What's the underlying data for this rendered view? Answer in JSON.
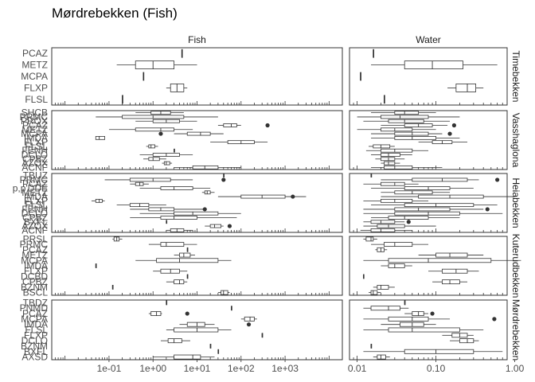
{
  "chart_data": {
    "type": "boxplot",
    "title": "Mørdrebekken (Fish)",
    "x_scale": "log10",
    "facet_columns": [
      {
        "name": "Fish",
        "xlim": [
          0.005,
          20000
        ],
        "tick_values": [
          0.1,
          1,
          10,
          100,
          1000
        ],
        "tick_labels": [
          "1e-01",
          "1e+00",
          "1e+01",
          "1e+02",
          "1e+03"
        ]
      },
      {
        "name": "Water",
        "xlim": [
          0.008,
          0.8
        ],
        "tick_values": [
          0.01,
          0.1,
          1
        ],
        "tick_labels": [
          "0.01",
          "0.10",
          "1.00"
        ]
      }
    ],
    "facet_rows": [
      {
        "name": "Timebekken",
        "categories": [
          "PCAZ",
          "METZ",
          "MCPA",
          "FLXP",
          "FLSL"
        ],
        "fish": [
          {
            "med": 4.5,
            "q1": 4.5,
            "q3": 4.5,
            "lo": 4.5,
            "hi": 4.5
          },
          {
            "med": 1.0,
            "q1": 0.4,
            "q3": 3.0,
            "lo": 0.15,
            "hi": 10
          },
          {
            "med": 0.6,
            "q1": 0.6,
            "q3": 0.6,
            "lo": 0.6,
            "hi": 0.6
          },
          {
            "med": 3.5,
            "q1": 2.5,
            "q3": 5.0,
            "lo": 2.0,
            "hi": 6.0
          },
          {
            "med": 0.2,
            "q1": 0.2,
            "q3": 0.2,
            "lo": 0.2,
            "hi": 0.2
          }
        ],
        "water": [
          {
            "med": 0.016,
            "q1": 0.016,
            "q3": 0.016,
            "lo": 0.016,
            "hi": 0.016
          },
          {
            "med": 0.09,
            "q1": 0.04,
            "q3": 0.22,
            "lo": 0.015,
            "hi": 0.6
          },
          {
            "med": 0.011,
            "q1": 0.011,
            "q3": 0.011,
            "lo": 0.011,
            "hi": 0.011
          },
          {
            "med": 0.25,
            "q1": 0.18,
            "q3": 0.32,
            "lo": 0.14,
            "hi": 0.4
          },
          {
            "med": 0.022,
            "q1": 0.022,
            "q3": 0.022,
            "lo": 0.022,
            "hi": 0.022
          }
        ]
      },
      {
        "name": "Vasshaglona",
        "categories": [
          "SHCB",
          "PRMC",
          "PROX",
          "PCAZ",
          "METZ",
          "MCPA",
          "IMDA",
          "FLXP",
          "FLSL",
          "FENH",
          "DCLO",
          "CPBZ",
          "AZOX",
          "ACNF"
        ],
        "fish": [
          {
            "med": 1.5,
            "q1": 0.9,
            "q3": 2.5,
            "lo": 0.4,
            "hi": 5
          },
          {
            "med": 1.0,
            "q1": 0.2,
            "q3": 5,
            "lo": 0.05,
            "hi": 30
          },
          {
            "med": 2.0,
            "q1": 1.0,
            "q3": 4,
            "lo": 0.4,
            "hi": 10
          },
          {
            "med": 60,
            "q1": 40,
            "q3": 80,
            "lo": 30,
            "hi": 100,
            "outliers": [
              400
            ]
          },
          {
            "med": 1.5,
            "q1": 0.4,
            "q3": 3,
            "lo": 0.1,
            "hi": 8
          },
          {
            "med": 12,
            "q1": 6,
            "q3": 20,
            "lo": 3,
            "hi": 40,
            "outliers": [
              1.5
            ]
          },
          {
            "med": 0.06,
            "q1": 0.05,
            "q3": 0.08,
            "lo": 0.05,
            "hi": 0.08
          },
          {
            "med": 100,
            "q1": 50,
            "q3": 200,
            "lo": 20,
            "hi": 400
          },
          {
            "med": 0.9,
            "q1": 0.8,
            "q3": 1.1,
            "lo": 0.7,
            "hi": 1.3
          },
          {
            "med": 3.0,
            "q1": 3.0,
            "q3": 3.0,
            "lo": 3.0,
            "hi": 3.0
          },
          {
            "med": 2.0,
            "q1": 1.0,
            "q3": 4,
            "lo": 0.5,
            "hi": 8
          },
          {
            "med": 1.0,
            "q1": 0.8,
            "q3": 1.4,
            "lo": 0.6,
            "hi": 2
          },
          {
            "med": 2.0,
            "q1": 1.8,
            "q3": 2.4,
            "lo": 1.6,
            "hi": 2.7
          },
          {
            "med": 15,
            "q1": 8,
            "q3": 30,
            "lo": 3,
            "hi": 100
          }
        ],
        "water": [
          {
            "med": 0.04,
            "q1": 0.03,
            "q3": 0.06,
            "lo": 0.015,
            "hi": 0.1
          },
          {
            "med": 0.035,
            "q1": 0.02,
            "q3": 0.08,
            "lo": 0.01,
            "hi": 0.2
          },
          {
            "med": 0.04,
            "q1": 0.025,
            "q3": 0.07,
            "lo": 0.012,
            "hi": 0.15
          },
          {
            "med": 0.06,
            "q1": 0.04,
            "q3": 0.09,
            "lo": 0.02,
            "hi": 0.14,
            "outliers": [
              0.17
            ]
          },
          {
            "med": 0.03,
            "q1": 0.02,
            "q3": 0.05,
            "lo": 0.01,
            "hi": 0.1
          },
          {
            "med": 0.05,
            "q1": 0.03,
            "q3": 0.08,
            "lo": 0.015,
            "hi": 0.12,
            "outliers": [
              0.15
            ]
          },
          {
            "med": 0.05,
            "q1": 0.03,
            "q3": 0.1,
            "lo": 0.015,
            "hi": 0.2
          },
          {
            "med": 0.12,
            "q1": 0.09,
            "q3": 0.16,
            "lo": 0.06,
            "hi": 0.25
          },
          {
            "med": 0.02,
            "q1": 0.016,
            "q3": 0.026,
            "lo": 0.014,
            "hi": 0.03
          },
          {
            "med": 0.03,
            "q1": 0.02,
            "q3": 0.05,
            "lo": 0.013,
            "hi": 0.08
          },
          {
            "med": 0.025,
            "q1": 0.02,
            "q3": 0.035,
            "lo": 0.015,
            "hi": 0.05
          },
          {
            "med": 0.025,
            "q1": 0.02,
            "q3": 0.03,
            "lo": 0.017,
            "hi": 0.04
          },
          {
            "med": 0.025,
            "q1": 0.022,
            "q3": 0.03,
            "lo": 0.02,
            "hi": 0.035
          },
          {
            "med": 0.03,
            "q1": 0.022,
            "q3": 0.05,
            "lo": 0.015,
            "hi": 0.12
          }
        ]
      },
      {
        "name": "Heiabekken",
        "categories": [
          "TBUZ",
          "PRMC",
          "PCAZ",
          "p,p'DDE",
          "METZ",
          "IMDA",
          "FLXP",
          "FLSL",
          "FENH",
          "DCLO",
          "CPBZ",
          "BXFL",
          "AZOX",
          "ACNF"
        ],
        "fish": [
          {
            "med": 40,
            "q1": 40,
            "q3": 40,
            "lo": 40,
            "hi": 40
          },
          {
            "med": 1.0,
            "q1": 0.3,
            "q3": 2.5,
            "lo": 0.08,
            "hi": 8,
            "outliers": [
              40
            ]
          },
          {
            "med": 0.5,
            "q1": 0.4,
            "q3": 0.6,
            "lo": 0.3,
            "hi": 0.8
          },
          {
            "med": 3.0,
            "q1": 1.5,
            "q3": 8,
            "lo": 0.5,
            "hi": 20
          },
          {
            "med": 17,
            "q1": 15,
            "q3": 20,
            "lo": 13,
            "hi": 25
          },
          {
            "med": 300,
            "q1": 100,
            "q3": 1000,
            "lo": 30,
            "hi": 3000,
            "outliers": [
              1500
            ]
          },
          {
            "med": 0.06,
            "q1": 0.05,
            "q3": 0.07,
            "lo": 0.04,
            "hi": 0.08
          },
          {
            "med": 0.5,
            "q1": 0.3,
            "q3": 0.8,
            "lo": 0.15,
            "hi": 2
          },
          {
            "med": 1.5,
            "q1": 0.8,
            "q3": 3,
            "lo": 0.3,
            "hi": 15,
            "outliers": [
              15
            ]
          },
          {
            "med": 8,
            "q1": 3,
            "q3": 30,
            "lo": 0.5,
            "hi": 100
          },
          {
            "med": 3,
            "q1": 1.5,
            "q3": 10,
            "lo": 0.3,
            "hi": 80
          },
          {
            "med": 2,
            "q1": 2,
            "q3": 2,
            "lo": 2,
            "hi": 2
          },
          {
            "med": 25,
            "q1": 20,
            "q3": 35,
            "lo": 15,
            "hi": 40,
            "outliers": [
              55
            ]
          },
          {
            "med": 3.5,
            "q1": 2.5,
            "q3": 5,
            "lo": 2,
            "hi": 8
          }
        ],
        "water": [
          {
            "med": 0.015,
            "q1": 0.015,
            "q3": 0.015,
            "lo": 0.015,
            "hi": 0.015
          },
          {
            "med": 0.12,
            "q1": 0.05,
            "q3": 0.25,
            "lo": 0.02,
            "hi": 0.35,
            "outliers": [
              0.6
            ]
          },
          {
            "med": 0.03,
            "q1": 0.02,
            "q3": 0.04,
            "lo": 0.012,
            "hi": 0.06
          },
          {
            "med": 0.08,
            "q1": 0.04,
            "q3": 0.15,
            "lo": 0.015,
            "hi": 0.3
          },
          {
            "med": 0.05,
            "q1": 0.03,
            "q3": 0.09,
            "lo": 0.02,
            "hi": 0.15
          },
          {
            "med": 0.15,
            "q1": 0.06,
            "q3": 0.4,
            "lo": 0.02,
            "hi": 1.0
          },
          {
            "med": 0.03,
            "q1": 0.02,
            "q3": 0.05,
            "lo": 0.012,
            "hi": 0.08
          },
          {
            "med": 0.1,
            "q1": 0.04,
            "q3": 0.3,
            "lo": 0.015,
            "hi": 0.6
          },
          {
            "med": 0.06,
            "q1": 0.03,
            "q3": 0.15,
            "lo": 0.012,
            "hi": 0.4,
            "outliers": [
              0.45
            ]
          },
          {
            "med": 0.08,
            "q1": 0.03,
            "q3": 0.2,
            "lo": 0.012,
            "hi": 0.7
          },
          {
            "med": 0.04,
            "q1": 0.025,
            "q3": 0.08,
            "lo": 0.015,
            "hi": 0.2
          },
          {
            "med": 0.02,
            "q1": 0.015,
            "q3": 0.03,
            "lo": 0.012,
            "hi": 0.04,
            "outliers": [
              0.045
            ]
          },
          {
            "med": 0.025,
            "q1": 0.018,
            "q3": 0.04,
            "lo": 0.012,
            "hi": 0.1
          },
          {
            "med": 0.02,
            "q1": 0.015,
            "q3": 0.03,
            "lo": 0.011,
            "hi": 0.05
          }
        ]
      },
      {
        "name": "Kuterudbekken",
        "categories": [
          "PRSL",
          "PRMC",
          "PCAZ",
          "METZ",
          "MCPA",
          "IMDA",
          "FLXP",
          "DCBD",
          "CPBZ",
          "BZNM",
          "BSCL"
        ],
        "fish": [
          {
            "med": 0.15,
            "q1": 0.13,
            "q3": 0.17,
            "lo": 0.12,
            "hi": 0.2
          },
          {
            "med": 2.0,
            "q1": 1.5,
            "q3": 5,
            "lo": 0.8,
            "hi": 10
          },
          {
            "med": 6,
            "q1": 6,
            "q3": 6,
            "lo": 6,
            "hi": 6
          },
          {
            "med": 5,
            "q1": 4,
            "q3": 7,
            "lo": 3,
            "hi": 9
          },
          {
            "med": 4,
            "q1": 1.2,
            "q3": 30,
            "lo": 0.4,
            "hi": 60
          },
          {
            "med": 0.05,
            "q1": 0.05,
            "q3": 0.05,
            "lo": 0.05,
            "hi": 0.05
          },
          {
            "med": 2.5,
            "q1": 1.5,
            "q3": 4,
            "lo": 1,
            "hi": 6
          },
          {
            "med": 6,
            "q1": 6,
            "q3": 6,
            "lo": 6,
            "hi": 6
          },
          {
            "med": 4,
            "q1": 3,
            "q3": 5,
            "lo": 2,
            "hi": 6
          },
          {
            "med": 0.12,
            "q1": 0.12,
            "q3": 0.12,
            "lo": 0.12,
            "hi": 0.12
          },
          {
            "med": 40,
            "q1": 35,
            "q3": 50,
            "lo": 30,
            "hi": 55
          }
        ],
        "water": [
          {
            "med": 0.015,
            "q1": 0.013,
            "q3": 0.016,
            "lo": 0.012,
            "hi": 0.018
          },
          {
            "med": 0.03,
            "q1": 0.022,
            "q3": 0.05,
            "lo": 0.015,
            "hi": 0.08
          },
          {
            "med": 0.02,
            "q1": 0.018,
            "q3": 0.022,
            "lo": 0.017,
            "hi": 0.024
          },
          {
            "med": 0.15,
            "q1": 0.1,
            "q3": 0.25,
            "lo": 0.06,
            "hi": 0.4
          },
          {
            "med": 0.08,
            "q1": 0.025,
            "q3": 0.5,
            "lo": 0.012,
            "hi": 1.2
          },
          {
            "med": 0.03,
            "q1": 0.025,
            "q3": 0.04,
            "lo": 0.02,
            "hi": 0.05
          },
          {
            "med": 0.18,
            "q1": 0.12,
            "q3": 0.25,
            "lo": 0.08,
            "hi": 0.35
          },
          {
            "med": 0.012,
            "q1": 0.012,
            "q3": 0.012,
            "lo": 0.012,
            "hi": 0.012
          },
          {
            "med": 0.15,
            "q1": 0.12,
            "q3": 0.2,
            "lo": 0.09,
            "hi": 0.25
          },
          {
            "med": 0.02,
            "q1": 0.018,
            "q3": 0.025,
            "lo": 0.016,
            "hi": 0.03
          },
          {
            "med": 0.016,
            "q1": 0.015,
            "q3": 0.018,
            "lo": 0.014,
            "hi": 0.02
          }
        ]
      },
      {
        "name": "Mørdrebekken",
        "categories": [
          "TBDZ",
          "PNMD",
          "PCAZ",
          "MCPA",
          "IMDA",
          "FLSL",
          "FLXP",
          "DCLO",
          "BZNM",
          "BXFL",
          "AXSD"
        ],
        "fish": [
          {
            "med": 2.0,
            "q1": 2.0,
            "q3": 2.0,
            "lo": 2.0,
            "hi": 2.0
          },
          {
            "med": 60,
            "q1": 60,
            "q3": 60,
            "lo": 60,
            "hi": 60
          },
          {
            "med": 1.2,
            "q1": 0.9,
            "q3": 1.5,
            "lo": 0.8,
            "hi": 1.6,
            "outliers": [
              6
            ]
          },
          {
            "med": 160,
            "q1": 120,
            "q3": 200,
            "lo": 100,
            "hi": 230
          },
          {
            "med": 10,
            "q1": 6,
            "q3": 15,
            "lo": 4,
            "hi": 25,
            "outliers": [
              150
            ]
          },
          {
            "med": 10,
            "q1": 3,
            "q3": 30,
            "lo": 2,
            "hi": 60
          },
          {
            "med": 300,
            "q1": 300,
            "q3": 300,
            "lo": 300,
            "hi": 300
          },
          {
            "med": 3,
            "q1": 2.2,
            "q3": 4.5,
            "lo": 1.5,
            "hi": 7
          },
          {
            "med": 20,
            "q1": 20,
            "q3": 20,
            "lo": 20,
            "hi": 20
          },
          {
            "med": 30,
            "q1": 30,
            "q3": 30,
            "lo": 30,
            "hi": 30
          },
          {
            "med": 8,
            "q1": 3,
            "q3": 12,
            "lo": 1,
            "hi": 25
          }
        ],
        "water": [
          {
            "med": 0.04,
            "q1": 0.04,
            "q3": 0.04,
            "lo": 0.04,
            "hi": 0.04
          },
          {
            "med": 0.025,
            "q1": 0.015,
            "q3": 0.035,
            "lo": 0.012,
            "hi": 0.045
          },
          {
            "med": 0.06,
            "q1": 0.05,
            "q3": 0.07,
            "lo": 0.04,
            "hi": 0.08,
            "outliers": [
              0.09
            ]
          },
          {
            "med": 0.05,
            "q1": 0.025,
            "q3": 0.08,
            "lo": 0.012,
            "hi": 0.15,
            "outliers": [
              0.55
            ]
          },
          {
            "med": 0.05,
            "q1": 0.035,
            "q3": 0.07,
            "lo": 0.02,
            "hi": 0.1
          },
          {
            "med": 0.05,
            "q1": 0.025,
            "q3": 0.2,
            "lo": 0.012,
            "hi": 0.4
          },
          {
            "med": 0.2,
            "q1": 0.16,
            "q3": 0.25,
            "lo": 0.12,
            "hi": 0.3
          },
          {
            "med": 0.25,
            "q1": 0.2,
            "q3": 0.3,
            "lo": 0.15,
            "hi": 0.35
          },
          {
            "med": 0.015,
            "q1": 0.015,
            "q3": 0.015,
            "lo": 0.015,
            "hi": 0.015
          },
          {
            "med": 0.1,
            "q1": 0.04,
            "q3": 0.3,
            "lo": 0.012,
            "hi": 0.7
          },
          {
            "med": 0.02,
            "q1": 0.018,
            "q3": 0.023,
            "lo": 0.016,
            "hi": 0.026
          }
        ]
      }
    ]
  }
}
